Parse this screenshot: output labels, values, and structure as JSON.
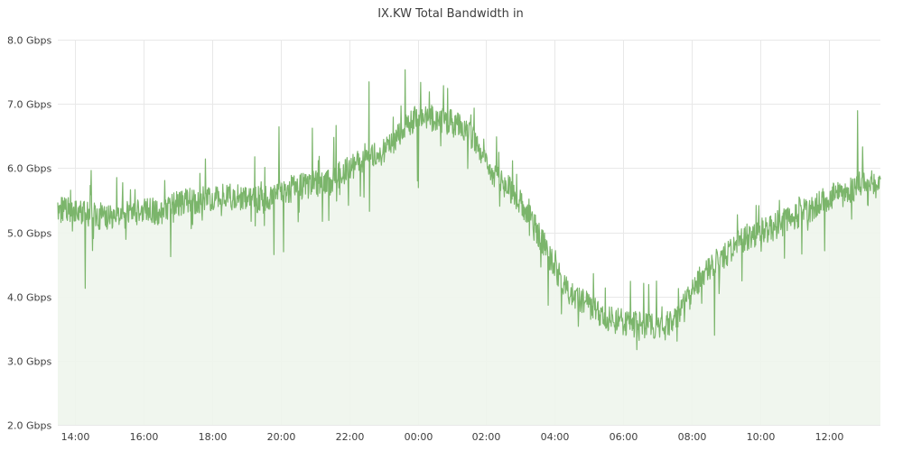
{
  "chart_data": {
    "type": "area",
    "title": "IX.KW Total Bandwidth in",
    "xlabel": "",
    "ylabel": "",
    "ylim": [
      2.0,
      8.0
    ],
    "grid": true,
    "legend": "none",
    "colors": {
      "line": "#7bb56b",
      "fill": "#eef5ec",
      "grid": "#e8e8e8",
      "text": "#3d3d3d"
    },
    "x_ticks": [
      "14:00",
      "16:00",
      "18:00",
      "20:00",
      "22:00",
      "00:00",
      "02:00",
      "04:00",
      "06:00",
      "08:00",
      "10:00",
      "12:00"
    ],
    "x_tick_hours": [
      14,
      16,
      18,
      20,
      22,
      24,
      26,
      28,
      30,
      32,
      34,
      36
    ],
    "x_range_hours": [
      13.5,
      37.5
    ],
    "y_ticks": [
      "2.0 Gbps",
      "3.0 Gbps",
      "4.0 Gbps",
      "5.0 Gbps",
      "6.0 Gbps",
      "7.0 Gbps",
      "8.0 Gbps"
    ],
    "y_tick_values": [
      2,
      3,
      4,
      5,
      6,
      7,
      8
    ],
    "series": [
      {
        "x": [
          13.5,
          14.0,
          14.5,
          15.0,
          15.5,
          16.0,
          16.5,
          17.0,
          17.5,
          18.0,
          18.5,
          19.0,
          19.5,
          20.0,
          20.5,
          21.0,
          21.5,
          22.0,
          22.5,
          23.0,
          23.5,
          24.0,
          24.5,
          25.0,
          25.5,
          26.0,
          26.5,
          27.0,
          27.5,
          28.0,
          28.5,
          29.0,
          29.5,
          30.0,
          30.5,
          31.0,
          31.5,
          32.0,
          32.5,
          33.0,
          33.5,
          34.0,
          34.5,
          35.0,
          35.5,
          36.0,
          36.5,
          37.0,
          37.5
        ],
        "values": [
          5.35,
          5.32,
          5.25,
          5.25,
          5.27,
          5.32,
          5.33,
          5.45,
          5.5,
          5.52,
          5.55,
          5.52,
          5.5,
          5.62,
          5.7,
          5.75,
          5.82,
          6.0,
          6.15,
          6.25,
          6.55,
          6.85,
          6.75,
          6.7,
          6.55,
          6.05,
          5.75,
          5.5,
          5.0,
          4.45,
          4.0,
          3.85,
          3.65,
          3.6,
          3.55,
          3.5,
          3.6,
          4.05,
          4.45,
          4.65,
          4.9,
          5.0,
          5.1,
          5.25,
          5.35,
          5.55,
          5.6,
          5.8,
          5.7
        ]
      }
    ]
  }
}
